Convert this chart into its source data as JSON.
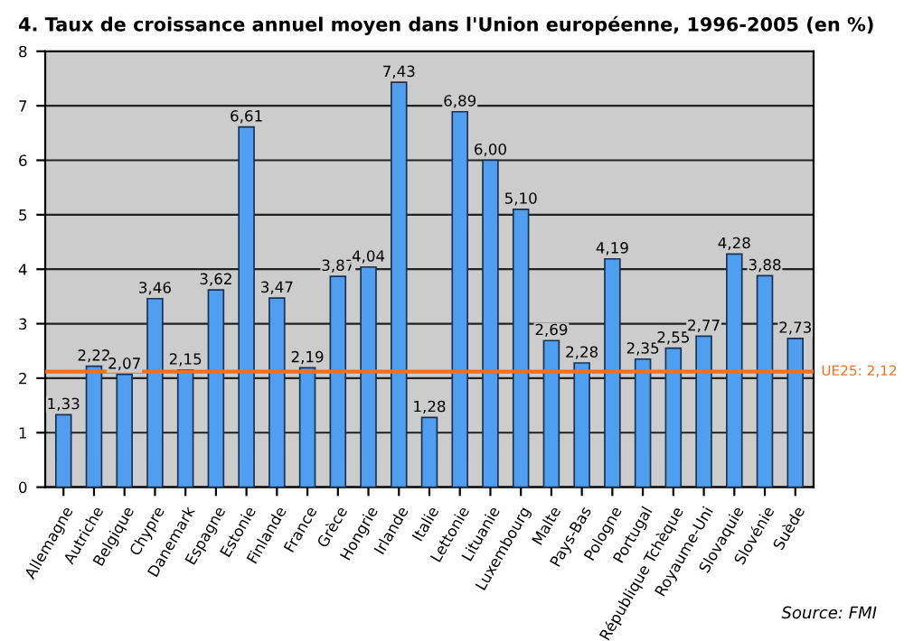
{
  "chart_data": {
    "type": "bar",
    "title": "4. Taux de croissance annuel moyen dans l'Union européenne, 1996-2005 (en %)",
    "categories": [
      "Allemagne",
      "Autriche",
      "Belgique",
      "Chypre",
      "Danemark",
      "Espagne",
      "Estonie",
      "Finlande",
      "France",
      "Grèce",
      "Hongrie",
      "Irlande",
      "Italie",
      "Lettonie",
      "Lituanie",
      "Luxembourg",
      "Malte",
      "Pays-Bas",
      "Pologne",
      "Portugal",
      "République Tchèque",
      "Royaume-Uni",
      "Slovaquie",
      "Slovénie",
      "Suède"
    ],
    "values": [
      1.33,
      2.22,
      2.07,
      3.46,
      2.15,
      3.62,
      6.61,
      3.47,
      2.19,
      3.87,
      4.04,
      7.43,
      1.28,
      6.89,
      6.0,
      5.1,
      2.69,
      2.28,
      4.19,
      2.35,
      2.55,
      2.77,
      4.28,
      3.88,
      2.73
    ],
    "value_labels": [
      "1,33",
      "2,22",
      "2,07",
      "3,46",
      "2,15",
      "3,62",
      "6,61",
      "3,47",
      "2,19",
      "3,87",
      "4,04",
      "7,43",
      "1,28",
      "6,89",
      "6,00",
      "5,10",
      "2,69",
      "2,28",
      "4,19",
      "2,35",
      "2,55",
      "2,77",
      "4,28",
      "3,88",
      "2,73"
    ],
    "color": "#4f9ef0",
    "ylim": [
      0,
      8
    ],
    "yticks": [
      0,
      1,
      2,
      3,
      4,
      5,
      6,
      7,
      8
    ],
    "grid": "y",
    "ref_lines": [
      {
        "axis": "y",
        "value": 2.12,
        "label": "UE25: 2,12",
        "color": "#f07020"
      }
    ],
    "annotations": [
      "Source: FMI"
    ]
  }
}
